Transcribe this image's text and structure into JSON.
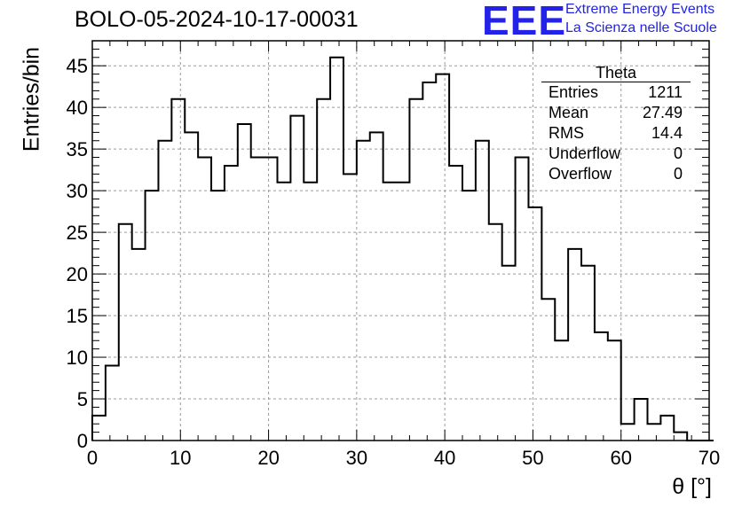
{
  "title": "BOLO-05-2024-10-17-00031",
  "logo": {
    "mark": "EEE",
    "line1": "Extreme Energy Events",
    "line2": "La Scienza nelle Scuole",
    "color": "#2222e8"
  },
  "stats": {
    "name": "Theta",
    "rows": [
      {
        "label": "Entries",
        "value": "1211"
      },
      {
        "label": "Mean",
        "value": "27.49"
      },
      {
        "label": "RMS",
        "value": "14.4"
      },
      {
        "label": "Underflow",
        "value": "0"
      },
      {
        "label": "Overflow",
        "value": "0"
      }
    ]
  },
  "chart_data": {
    "type": "histogram",
    "title": "BOLO-05-2024-10-17-00031",
    "xlabel": "θ [°]",
    "ylabel": "Entries/bin",
    "xlim": [
      0,
      70
    ],
    "ylim": [
      0,
      48
    ],
    "bin_width": 1.5,
    "x_ticks": [
      0,
      10,
      20,
      30,
      40,
      50,
      60,
      70
    ],
    "y_ticks": [
      0,
      5,
      10,
      15,
      20,
      25,
      30,
      35,
      40,
      45
    ],
    "grid": true,
    "values": [
      3,
      9,
      26,
      23,
      30,
      36,
      41,
      37,
      34,
      30,
      33,
      38,
      34,
      34,
      31,
      39,
      31,
      41,
      46,
      32,
      36,
      37,
      31,
      31,
      41,
      43,
      44,
      33,
      30,
      36,
      26,
      21,
      34,
      28,
      17,
      12,
      23,
      21,
      13,
      12,
      2,
      5,
      2,
      3,
      1,
      0,
      0
    ]
  }
}
